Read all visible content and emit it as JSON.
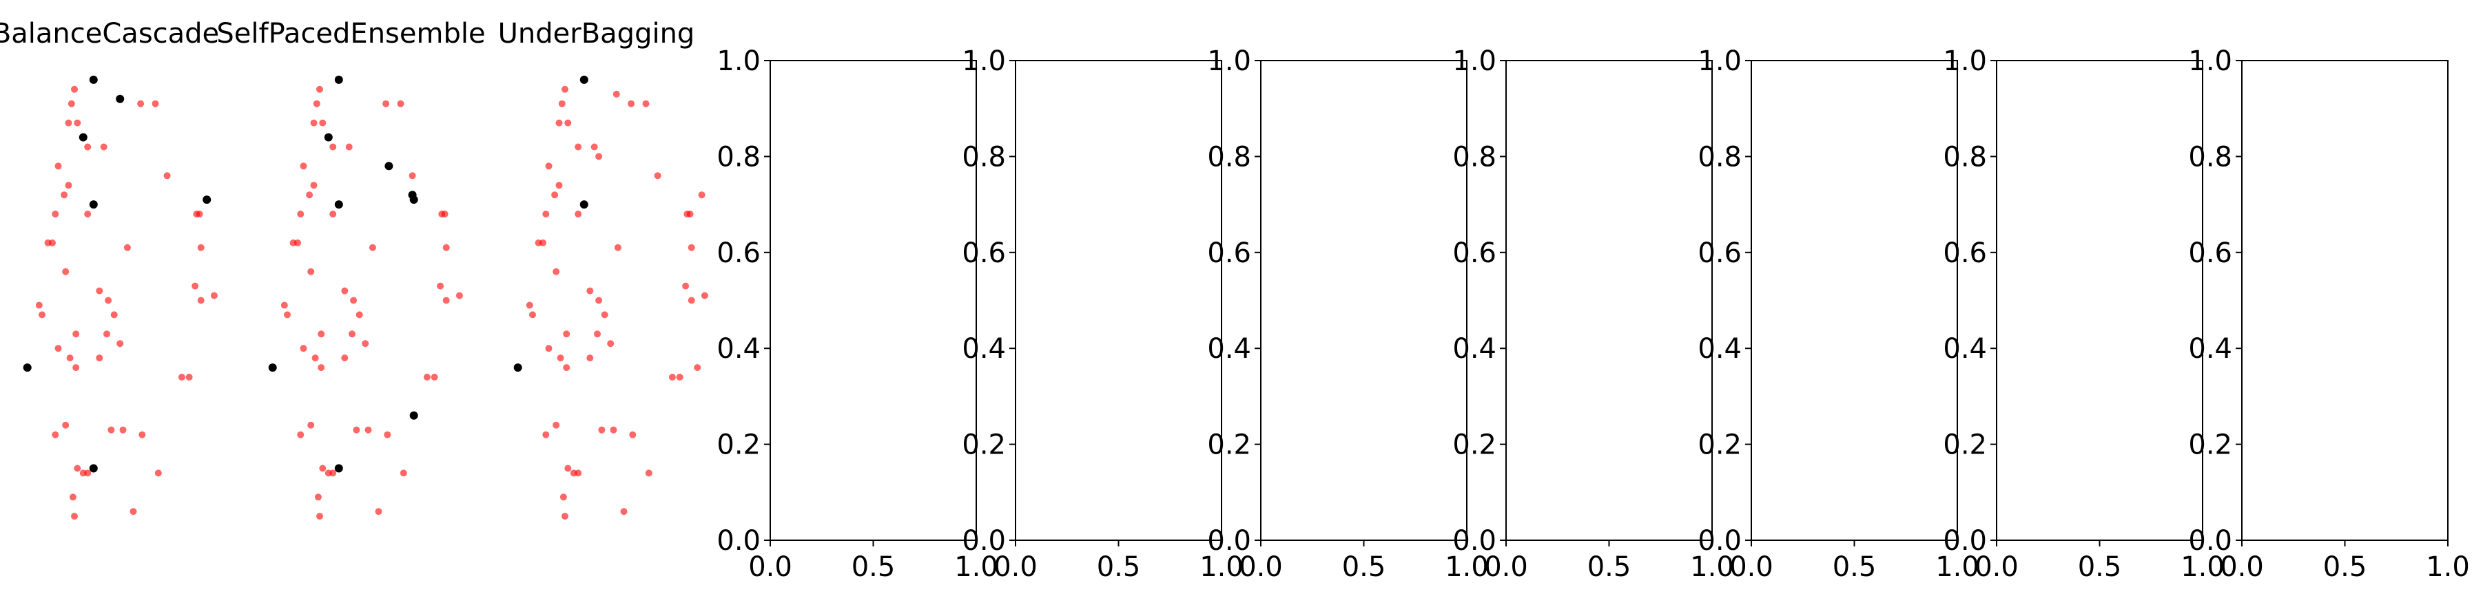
{
  "chart_data": [
    {
      "type": "scatter",
      "title": "BalanceCascade",
      "axes_visible": false,
      "series": [
        {
          "name": "",
          "color": "#ff0000",
          "alpha": 0.6,
          "points": [
            [
              -0.13,
              0.94
            ],
            [
              -0.15,
              0.91
            ],
            [
              -0.17,
              0.87
            ],
            [
              -0.11,
              0.87
            ],
            [
              0.32,
              0.91
            ],
            [
              0.42,
              0.91
            ],
            [
              -0.04,
              0.82
            ],
            [
              0.07,
              0.82
            ],
            [
              -0.24,
              0.78
            ],
            [
              -0.17,
              0.74
            ],
            [
              -0.2,
              0.72
            ],
            [
              0.5,
              0.76
            ],
            [
              -0.26,
              0.68
            ],
            [
              -0.04,
              0.68
            ],
            [
              0.7,
              0.68
            ],
            [
              0.72,
              0.68
            ],
            [
              -0.31,
              0.62
            ],
            [
              -0.28,
              0.62
            ],
            [
              0.23,
              0.61
            ],
            [
              0.73,
              0.61
            ],
            [
              -0.19,
              0.56
            ],
            [
              0.69,
              0.53
            ],
            [
              0.04,
              0.52
            ],
            [
              0.1,
              0.5
            ],
            [
              0.73,
              0.5
            ],
            [
              0.82,
              0.51
            ],
            [
              -0.37,
              0.49
            ],
            [
              -0.35,
              0.47
            ],
            [
              0.14,
              0.47
            ],
            [
              -0.12,
              0.43
            ],
            [
              0.09,
              0.43
            ],
            [
              0.18,
              0.41
            ],
            [
              -0.24,
              0.4
            ],
            [
              -0.16,
              0.38
            ],
            [
              0.04,
              0.38
            ],
            [
              -0.12,
              0.36
            ],
            [
              0.6,
              0.34
            ],
            [
              0.65,
              0.34
            ],
            [
              -0.26,
              0.22
            ],
            [
              -0.19,
              0.24
            ],
            [
              0.12,
              0.23
            ],
            [
              0.2,
              0.23
            ],
            [
              0.33,
              0.22
            ],
            [
              -0.11,
              0.15
            ],
            [
              -0.07,
              0.14
            ],
            [
              -0.04,
              0.14
            ],
            [
              0.44,
              0.14
            ],
            [
              -0.14,
              0.09
            ],
            [
              0.27,
              0.06
            ],
            [
              -0.13,
              0.05
            ]
          ]
        },
        {
          "name": "",
          "color": "#000000",
          "alpha": 1.0,
          "points": [
            [
              0.0,
              0.96
            ],
            [
              0.18,
              0.92
            ],
            [
              -0.07,
              0.84
            ],
            [
              0.0,
              0.7
            ],
            [
              0.77,
              0.71
            ],
            [
              -0.45,
              0.36
            ],
            [
              0.0,
              0.15
            ]
          ]
        }
      ]
    },
    {
      "type": "scatter",
      "title": "SelfPacedEnsemble",
      "axes_visible": false,
      "series": [
        {
          "name": "",
          "color": "#ff0000",
          "alpha": 0.6,
          "points": [
            [
              -0.13,
              0.94
            ],
            [
              -0.15,
              0.91
            ],
            [
              -0.17,
              0.87
            ],
            [
              -0.11,
              0.87
            ],
            [
              0.32,
              0.91
            ],
            [
              0.42,
              0.91
            ],
            [
              -0.04,
              0.82
            ],
            [
              0.07,
              0.82
            ],
            [
              -0.24,
              0.78
            ],
            [
              -0.17,
              0.74
            ],
            [
              -0.2,
              0.72
            ],
            [
              0.5,
              0.76
            ],
            [
              -0.26,
              0.68
            ],
            [
              -0.04,
              0.68
            ],
            [
              0.7,
              0.68
            ],
            [
              0.72,
              0.68
            ],
            [
              -0.31,
              0.62
            ],
            [
              -0.28,
              0.62
            ],
            [
              0.23,
              0.61
            ],
            [
              0.73,
              0.61
            ],
            [
              -0.19,
              0.56
            ],
            [
              0.69,
              0.53
            ],
            [
              0.04,
              0.52
            ],
            [
              0.1,
              0.5
            ],
            [
              0.73,
              0.5
            ],
            [
              0.82,
              0.51
            ],
            [
              -0.37,
              0.49
            ],
            [
              -0.35,
              0.47
            ],
            [
              0.14,
              0.47
            ],
            [
              -0.12,
              0.43
            ],
            [
              0.09,
              0.43
            ],
            [
              0.18,
              0.41
            ],
            [
              -0.24,
              0.4
            ],
            [
              -0.16,
              0.38
            ],
            [
              0.04,
              0.38
            ],
            [
              -0.12,
              0.36
            ],
            [
              0.6,
              0.34
            ],
            [
              0.65,
              0.34
            ],
            [
              -0.26,
              0.22
            ],
            [
              -0.19,
              0.24
            ],
            [
              0.12,
              0.23
            ],
            [
              0.2,
              0.23
            ],
            [
              0.33,
              0.22
            ],
            [
              -0.11,
              0.15
            ],
            [
              -0.07,
              0.14
            ],
            [
              -0.04,
              0.14
            ],
            [
              0.44,
              0.14
            ],
            [
              -0.14,
              0.09
            ],
            [
              0.27,
              0.06
            ],
            [
              -0.13,
              0.05
            ]
          ]
        },
        {
          "name": "",
          "color": "#000000",
          "alpha": 1.0,
          "points": [
            [
              0.0,
              0.96
            ],
            [
              -0.07,
              0.84
            ],
            [
              0.34,
              0.78
            ],
            [
              0.0,
              0.7
            ],
            [
              0.5,
              0.72
            ],
            [
              0.51,
              0.71
            ],
            [
              -0.45,
              0.36
            ],
            [
              0.51,
              0.26
            ],
            [
              0.0,
              0.15
            ]
          ]
        }
      ]
    },
    {
      "type": "scatter",
      "title": "UnderBagging",
      "axes_visible": false,
      "series": [
        {
          "name": "",
          "color": "#ff0000",
          "alpha": 0.6,
          "points": [
            [
              -0.13,
              0.94
            ],
            [
              -0.15,
              0.91
            ],
            [
              -0.17,
              0.87
            ],
            [
              -0.11,
              0.87
            ],
            [
              0.22,
              0.93
            ],
            [
              0.32,
              0.91
            ],
            [
              0.42,
              0.91
            ],
            [
              -0.04,
              0.82
            ],
            [
              0.07,
              0.82
            ],
            [
              0.1,
              0.8
            ],
            [
              -0.24,
              0.78
            ],
            [
              -0.17,
              0.74
            ],
            [
              -0.2,
              0.72
            ],
            [
              0.5,
              0.76
            ],
            [
              -0.26,
              0.68
            ],
            [
              -0.04,
              0.68
            ],
            [
              0.7,
              0.68
            ],
            [
              0.72,
              0.68
            ],
            [
              0.8,
              0.72
            ],
            [
              -0.31,
              0.62
            ],
            [
              -0.28,
              0.62
            ],
            [
              0.23,
              0.61
            ],
            [
              0.73,
              0.61
            ],
            [
              -0.19,
              0.56
            ],
            [
              0.69,
              0.53
            ],
            [
              0.04,
              0.52
            ],
            [
              0.1,
              0.5
            ],
            [
              0.73,
              0.5
            ],
            [
              0.82,
              0.51
            ],
            [
              -0.37,
              0.49
            ],
            [
              -0.35,
              0.47
            ],
            [
              0.14,
              0.47
            ],
            [
              -0.12,
              0.43
            ],
            [
              0.09,
              0.43
            ],
            [
              0.18,
              0.41
            ],
            [
              -0.24,
              0.4
            ],
            [
              -0.16,
              0.38
            ],
            [
              0.04,
              0.38
            ],
            [
              -0.12,
              0.36
            ],
            [
              0.6,
              0.34
            ],
            [
              0.65,
              0.34
            ],
            [
              0.77,
              0.36
            ],
            [
              -0.26,
              0.22
            ],
            [
              -0.19,
              0.24
            ],
            [
              0.12,
              0.23
            ],
            [
              0.2,
              0.23
            ],
            [
              0.33,
              0.22
            ],
            [
              -0.11,
              0.15
            ],
            [
              -0.07,
              0.14
            ],
            [
              -0.04,
              0.14
            ],
            [
              0.44,
              0.14
            ],
            [
              -0.14,
              0.09
            ],
            [
              0.27,
              0.06
            ],
            [
              -0.13,
              0.05
            ]
          ]
        },
        {
          "name": "",
          "color": "#000000",
          "alpha": 1.0,
          "points": [
            [
              0.0,
              0.96
            ],
            [
              0.0,
              0.7
            ],
            [
              -0.45,
              0.36
            ]
          ]
        }
      ]
    },
    {
      "type": "scatter",
      "title": "",
      "axes_visible": true,
      "xlim": [
        0.0,
        1.0
      ],
      "ylim": [
        0.0,
        1.0
      ],
      "xticks": [
        "0.0",
        "0.5",
        "1.0"
      ],
      "yticks": [
        "0.0",
        "0.2",
        "0.4",
        "0.6",
        "0.8",
        "1.0"
      ],
      "series": []
    },
    {
      "type": "scatter",
      "title": "",
      "axes_visible": true,
      "xlim": [
        0.0,
        1.0
      ],
      "ylim": [
        0.0,
        1.0
      ],
      "xticks": [
        "0.0",
        "0.5",
        "1.0"
      ],
      "yticks": [
        "0.0",
        "0.2",
        "0.4",
        "0.6",
        "0.8",
        "1.0"
      ],
      "series": []
    },
    {
      "type": "scatter",
      "title": "",
      "axes_visible": true,
      "xlim": [
        0.0,
        1.0
      ],
      "ylim": [
        0.0,
        1.0
      ],
      "xticks": [
        "0.0",
        "0.5",
        "1.0"
      ],
      "yticks": [
        "0.0",
        "0.2",
        "0.4",
        "0.6",
        "0.8",
        "1.0"
      ],
      "series": []
    },
    {
      "type": "scatter",
      "title": "",
      "axes_visible": true,
      "xlim": [
        0.0,
        1.0
      ],
      "ylim": [
        0.0,
        1.0
      ],
      "xticks": [
        "0.0",
        "0.5",
        "1.0"
      ],
      "yticks": [
        "0.0",
        "0.2",
        "0.4",
        "0.6",
        "0.8",
        "1.0"
      ],
      "series": []
    },
    {
      "type": "scatter",
      "title": "",
      "axes_visible": true,
      "xlim": [
        0.0,
        1.0
      ],
      "ylim": [
        0.0,
        1.0
      ],
      "xticks": [
        "0.0",
        "0.5",
        "1.0"
      ],
      "yticks": [
        "0.0",
        "0.2",
        "0.4",
        "0.6",
        "0.8",
        "1.0"
      ],
      "series": []
    },
    {
      "type": "scatter",
      "title": "",
      "axes_visible": true,
      "xlim": [
        0.0,
        1.0
      ],
      "ylim": [
        0.0,
        1.0
      ],
      "xticks": [
        "0.0",
        "0.5",
        "1.0"
      ],
      "yticks": [
        "0.0",
        "0.2",
        "0.4",
        "0.6",
        "0.8",
        "1.0"
      ],
      "series": []
    },
    {
      "type": "scatter",
      "title": "",
      "axes_visible": true,
      "xlim": [
        0.0,
        1.0
      ],
      "ylim": [
        0.0,
        1.0
      ],
      "xticks": [
        "0.0",
        "0.5",
        "1.0"
      ],
      "yticks": [
        "0.0",
        "0.2",
        "0.4",
        "0.6",
        "0.8",
        "1.0"
      ],
      "series": []
    }
  ]
}
